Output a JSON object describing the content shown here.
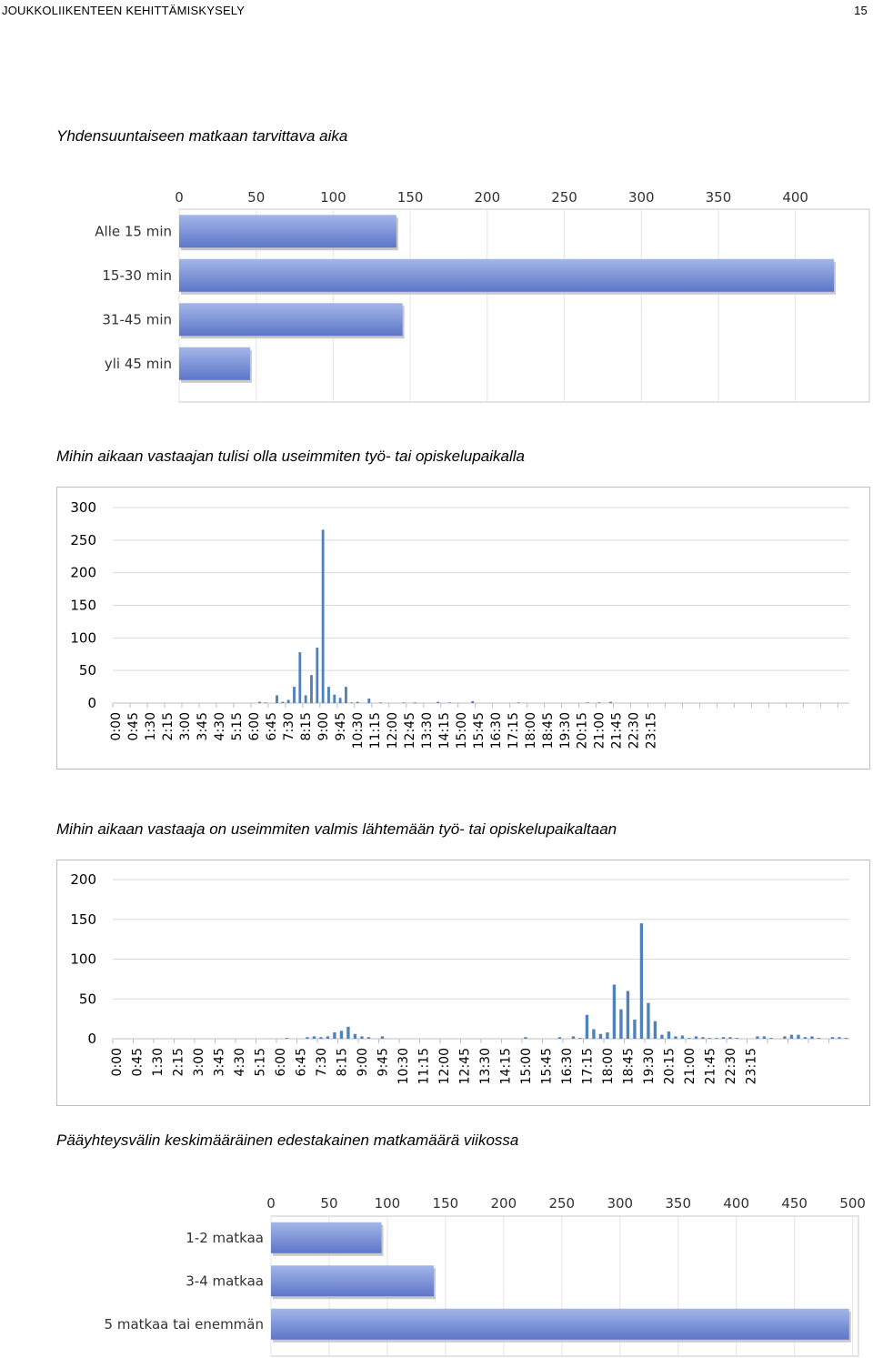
{
  "header": {
    "title": "JOUKKOLIIKENTEEN KEHITTÄMISKYSELY",
    "page_number": "15"
  },
  "captions": {
    "travel_time": "Yhdensuuntaiseen matkaan tarvittava aika",
    "arrival_time": "Mihin aikaan vastaajan tulisi olla useimmiten työ- tai opiskelupaikalla",
    "departure_time": "Mihin aikaan vastaaja on useimmiten valmis lähtemään työ- tai opiskelupaikaltaan",
    "trips": "Pääyhteysvälin keskimääräinen edestakainen matkamäärä viikossa"
  },
  "colors": {
    "bar_gradient_top": "#a3b6e8",
    "bar_gradient_bottom": "#5d76c8",
    "column": "#4f81bd",
    "grid": "#d9d9d9"
  },
  "chart_data": [
    {
      "id": "travel_time",
      "type": "bar",
      "orientation": "horizontal",
      "categories": [
        "Alle 15 min",
        "15-30 min",
        "31-45 min",
        "yli 45 min"
      ],
      "values": [
        141,
        425,
        145,
        46
      ],
      "xticks": [
        "0",
        "50",
        "100",
        "150",
        "200",
        "250",
        "300",
        "350",
        "400"
      ],
      "xlim": [
        0,
        448
      ]
    },
    {
      "id": "arrival_time",
      "type": "bar",
      "yticks": [
        "300",
        "250",
        "200",
        "150",
        "100",
        "50",
        "0"
      ],
      "ylim": [
        0,
        300
      ],
      "xtick_labels": [
        "0:00",
        "0:45",
        "1:30",
        "2:15",
        "3:00",
        "3:45",
        "4:30",
        "5:15",
        "6:00",
        "6:45",
        "7:30",
        "8:15",
        "9:00",
        "9:45",
        "10:30",
        "11:15",
        "12:00",
        "12:45",
        "13:30",
        "14:15",
        "15:00",
        "15:45",
        "16:30",
        "17:15",
        "18:00",
        "18:45",
        "19:30",
        "20:15",
        "21:00",
        "21:45",
        "22:30",
        "23:15"
      ],
      "bins_per_hour": 4,
      "values": [
        0,
        0,
        0,
        0,
        0,
        0,
        0,
        0,
        0,
        0,
        0,
        0,
        0,
        0,
        0,
        0,
        0,
        0,
        0,
        0,
        0,
        0,
        0,
        0,
        0,
        2,
        1,
        0,
        12,
        2,
        5,
        25,
        78,
        12,
        43,
        85,
        266,
        25,
        13,
        8,
        25,
        1,
        2,
        0,
        7,
        0,
        1,
        0,
        0,
        0,
        1,
        0,
        1,
        0,
        0,
        0,
        2,
        0,
        1,
        0,
        0,
        0,
        3,
        0,
        0,
        0,
        0,
        0,
        0,
        0,
        1,
        0,
        0,
        0,
        0,
        0,
        0,
        0,
        0,
        0,
        0,
        0,
        1,
        0,
        1,
        0,
        2,
        0,
        0,
        0,
        0,
        0,
        0,
        0,
        0,
        0,
        0,
        0,
        0,
        0,
        0,
        0,
        0,
        0,
        0,
        0,
        0,
        0,
        0,
        0,
        0,
        0,
        0,
        0,
        0,
        0,
        0,
        0,
        0,
        0,
        0,
        0,
        0,
        0,
        0,
        0,
        0,
        0
      ]
    },
    {
      "id": "departure_time",
      "type": "bar",
      "yticks": [
        "200",
        "150",
        "100",
        "50",
        "0"
      ],
      "ylim": [
        0,
        200
      ],
      "xtick_labels": [
        "0:00",
        "0:45",
        "1:30",
        "2:15",
        "3:00",
        "3:45",
        "4:30",
        "5:15",
        "6:00",
        "6:45",
        "7:30",
        "8:15",
        "9:00",
        "9:45",
        "10:30",
        "11:15",
        "12:00",
        "12:45",
        "13:30",
        "14:15",
        "15:00",
        "15:45",
        "16:30",
        "17:15",
        "18:00",
        "18:45",
        "19:30",
        "20:15",
        "21:00",
        "21:45",
        "22:30",
        "23:15"
      ],
      "bins_per_hour": 4,
      "values": [
        0,
        0,
        0,
        0,
        0,
        0,
        0,
        0,
        0,
        0,
        0,
        0,
        0,
        0,
        0,
        0,
        0,
        0,
        0,
        0,
        0,
        0,
        0,
        0,
        0,
        1,
        0,
        0,
        2,
        3,
        2,
        3,
        8,
        10,
        15,
        6,
        3,
        2,
        0,
        3,
        0,
        0,
        0,
        0,
        0,
        0,
        0,
        0,
        0,
        0,
        0,
        0,
        0,
        0,
        0,
        0,
        0,
        0,
        0,
        0,
        2,
        0,
        0,
        0,
        0,
        2,
        0,
        3,
        1,
        30,
        12,
        6,
        8,
        68,
        37,
        60,
        24,
        145,
        45,
        22,
        5,
        9,
        3,
        4,
        1,
        3,
        2,
        1,
        1,
        2,
        2,
        1,
        0,
        0,
        3,
        3,
        1,
        0,
        3,
        5,
        5,
        2,
        3,
        1,
        0,
        2,
        2,
        1
      ]
    },
    {
      "id": "trips",
      "type": "bar",
      "orientation": "horizontal",
      "categories": [
        "1-2 matkaa",
        "3-4 matkaa",
        "5 matkaa tai enemmän"
      ],
      "values": [
        95,
        140,
        497
      ],
      "xticks": [
        "0",
        "50",
        "100",
        "150",
        "200",
        "250",
        "300",
        "350",
        "400",
        "450",
        "500"
      ],
      "xlim": [
        0,
        505
      ]
    }
  ]
}
